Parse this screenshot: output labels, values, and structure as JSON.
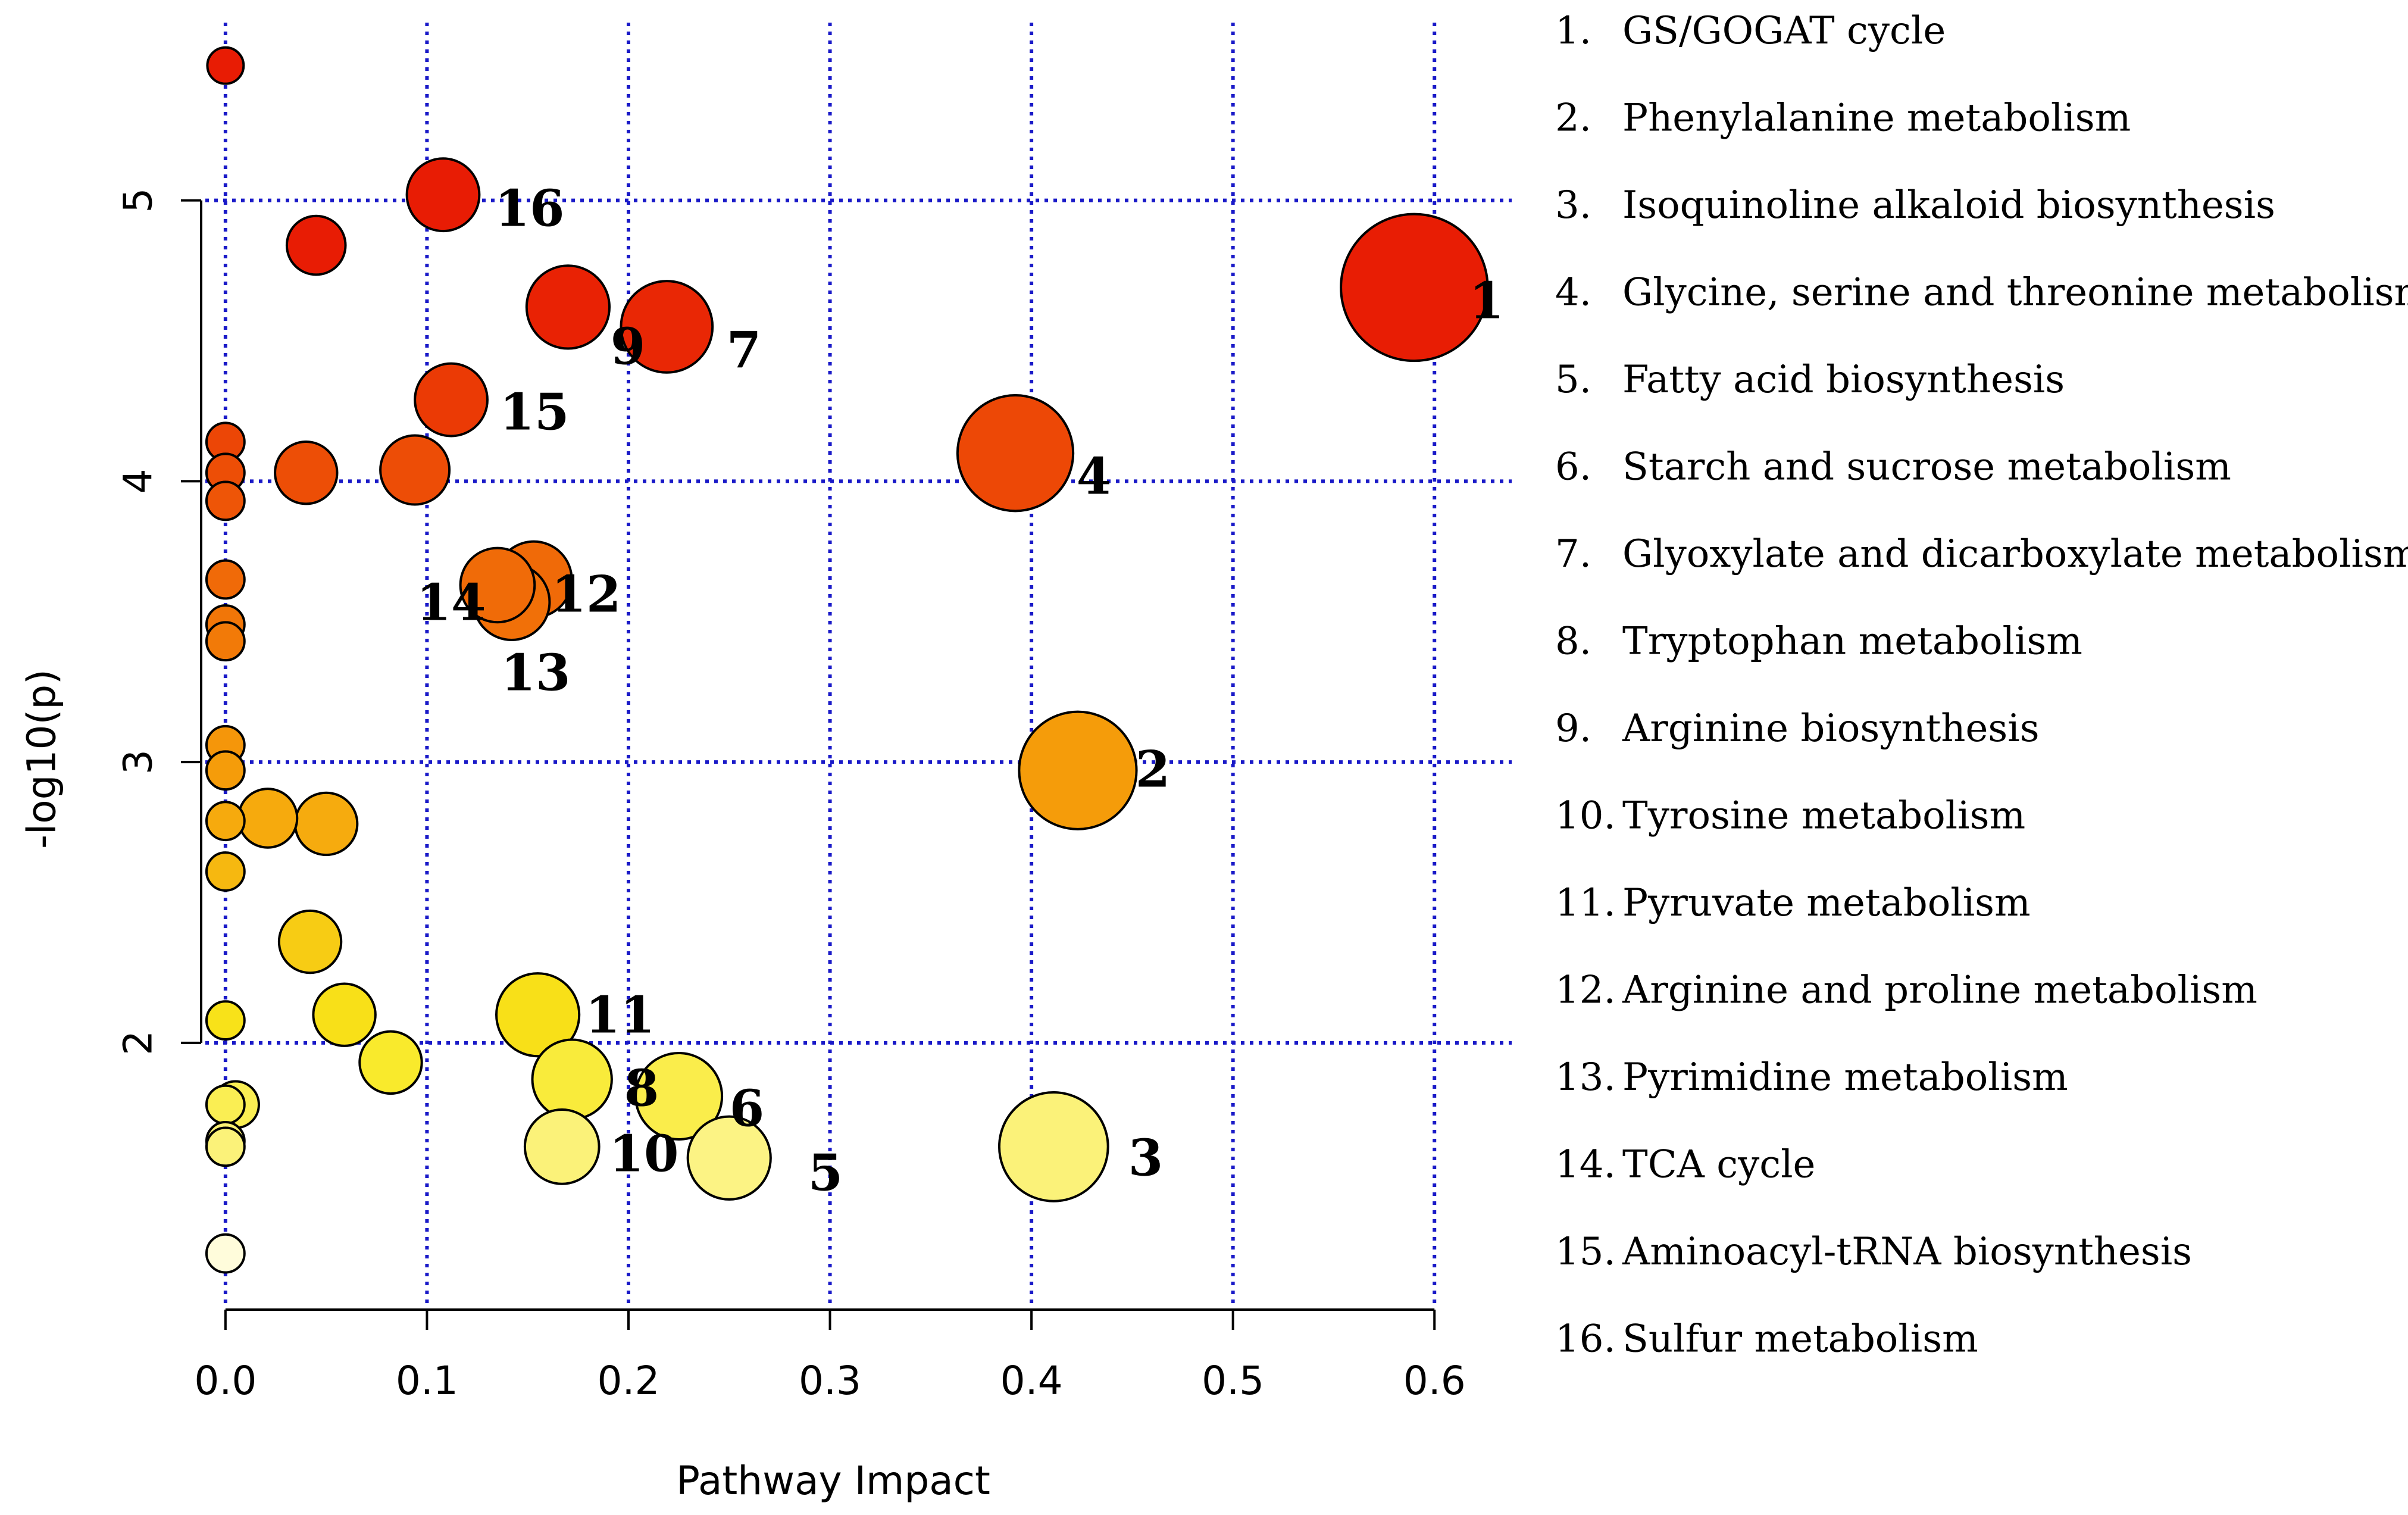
{
  "chart_data": {
    "type": "scatter",
    "title": "",
    "xlabel": "Pathway Impact",
    "ylabel": "-log10(p)",
    "xlim": [
      -0.01,
      0.615
    ],
    "ylim": [
      1.05,
      5.65
    ],
    "xticks": [
      "0.0",
      "0.1",
      "0.2",
      "0.3",
      "0.4",
      "0.5",
      "0.6"
    ],
    "yticks": [
      "2",
      "3",
      "4",
      "5"
    ],
    "grid": true,
    "color_scale": "white-yellow-orange-red by -log10(p)",
    "points": [
      {
        "x": 0.59,
        "y": 4.69,
        "size": 8.5,
        "label": "1"
      },
      {
        "x": 0.423,
        "y": 2.97,
        "size": 6.8,
        "label": "2"
      },
      {
        "x": 0.411,
        "y": 1.63,
        "size": 6.3,
        "label": "3"
      },
      {
        "x": 0.392,
        "y": 4.1,
        "size": 6.7,
        "label": "4"
      },
      {
        "x": 0.25,
        "y": 1.59,
        "size": 4.8,
        "label": "5"
      },
      {
        "x": 0.225,
        "y": 1.81,
        "size": 5.0,
        "label": "6"
      },
      {
        "x": 0.219,
        "y": 4.55,
        "size": 5.3,
        "label": "7"
      },
      {
        "x": 0.172,
        "y": 1.87,
        "size": 4.6,
        "label": "8"
      },
      {
        "x": 0.17,
        "y": 4.62,
        "size": 4.8,
        "label": "9"
      },
      {
        "x": 0.167,
        "y": 1.63,
        "size": 4.3,
        "label": "10"
      },
      {
        "x": 0.155,
        "y": 2.1,
        "size": 4.8,
        "label": "11"
      },
      {
        "x": 0.153,
        "y": 3.65,
        "size": 4.4,
        "label": "12"
      },
      {
        "x": 0.142,
        "y": 3.57,
        "size": 4.4,
        "label": "13"
      },
      {
        "x": 0.135,
        "y": 3.63,
        "size": 4.3,
        "label": "14"
      },
      {
        "x": 0.112,
        "y": 4.29,
        "size": 4.2,
        "label": "15"
      },
      {
        "x": 0.108,
        "y": 5.02,
        "size": 4.2,
        "label": "16"
      },
      {
        "x": 0.094,
        "y": 4.04,
        "size": 4.0,
        "label": ""
      },
      {
        "x": 0.082,
        "y": 1.93,
        "size": 3.6,
        "label": ""
      },
      {
        "x": 0.059,
        "y": 2.1,
        "size": 3.6,
        "label": ""
      },
      {
        "x": 0.05,
        "y": 2.78,
        "size": 3.6,
        "label": ""
      },
      {
        "x": 0.045,
        "y": 4.84,
        "size": 3.4,
        "label": ""
      },
      {
        "x": 0.042,
        "y": 2.36,
        "size": 3.6,
        "label": ""
      },
      {
        "x": 0.04,
        "y": 4.03,
        "size": 3.6,
        "label": ""
      },
      {
        "x": 0.021,
        "y": 2.8,
        "size": 3.4,
        "label": ""
      },
      {
        "x": 0.005,
        "y": 1.78,
        "size": 2.7,
        "label": ""
      },
      {
        "x": 0.0,
        "y": 5.48,
        "size": 2.1,
        "label": ""
      },
      {
        "x": 0.0,
        "y": 4.14,
        "size": 2.2,
        "label": ""
      },
      {
        "x": 0.0,
        "y": 4.03,
        "size": 2.2,
        "label": ""
      },
      {
        "x": 0.0,
        "y": 3.93,
        "size": 2.2,
        "label": ""
      },
      {
        "x": 0.0,
        "y": 3.65,
        "size": 2.2,
        "label": ""
      },
      {
        "x": 0.0,
        "y": 3.49,
        "size": 2.2,
        "label": ""
      },
      {
        "x": 0.0,
        "y": 3.43,
        "size": 2.2,
        "label": ""
      },
      {
        "x": 0.0,
        "y": 3.06,
        "size": 2.2,
        "label": ""
      },
      {
        "x": 0.0,
        "y": 2.97,
        "size": 2.2,
        "label": ""
      },
      {
        "x": 0.0,
        "y": 2.79,
        "size": 2.2,
        "label": ""
      },
      {
        "x": 0.0,
        "y": 2.61,
        "size": 2.2,
        "label": ""
      },
      {
        "x": 0.0,
        "y": 2.08,
        "size": 2.2,
        "label": ""
      },
      {
        "x": 0.0,
        "y": 1.78,
        "size": 2.2,
        "label": ""
      },
      {
        "x": 0.0,
        "y": 1.65,
        "size": 2.2,
        "label": ""
      },
      {
        "x": 0.0,
        "y": 1.63,
        "size": 2.2,
        "label": ""
      },
      {
        "x": 0.0,
        "y": 1.25,
        "size": 2.2,
        "label": ""
      }
    ],
    "legend": [
      {
        "num": "1.",
        "name": "GS/GOGAT cycle"
      },
      {
        "num": "2.",
        "name": "Phenylalanine metabolism"
      },
      {
        "num": "3.",
        "name": "Isoquinoline alkaloid biosynthesis"
      },
      {
        "num": "4.",
        "name": "Glycine, serine and threonine metabolism"
      },
      {
        "num": "5.",
        "name": "Fatty acid biosynthesis"
      },
      {
        "num": "6.",
        "name": "Starch and sucrose metabolism"
      },
      {
        "num": "7.",
        "name": "Glyoxylate and dicarboxylate metabolism"
      },
      {
        "num": "8.",
        "name": "Tryptophan metabolism"
      },
      {
        "num": "9.",
        "name": "Arginine biosynthesis"
      },
      {
        "num": "10.",
        "name": "Tyrosine metabolism"
      },
      {
        "num": "11.",
        "name": "Pyruvate metabolism"
      },
      {
        "num": "12.",
        "name": "Arginine and proline metabolism"
      },
      {
        "num": "13.",
        "name": "Pyrimidine metabolism"
      },
      {
        "num": "14.",
        "name": "TCA cycle"
      },
      {
        "num": "15.",
        "name": "Aminoacyl-tRNA biosynthesis"
      },
      {
        "num": "16.",
        "name": "Sulfur metabolism"
      }
    ],
    "legend_position": "right"
  },
  "colors": {
    "grid": "#1a1ac8",
    "axis": "#000000",
    "marker_stroke": "#000000",
    "scale_low": "#fffde8",
    "scale_yellow": "#f8e81a",
    "scale_orange": "#f59a0a",
    "scale_high": "#e81c04"
  }
}
